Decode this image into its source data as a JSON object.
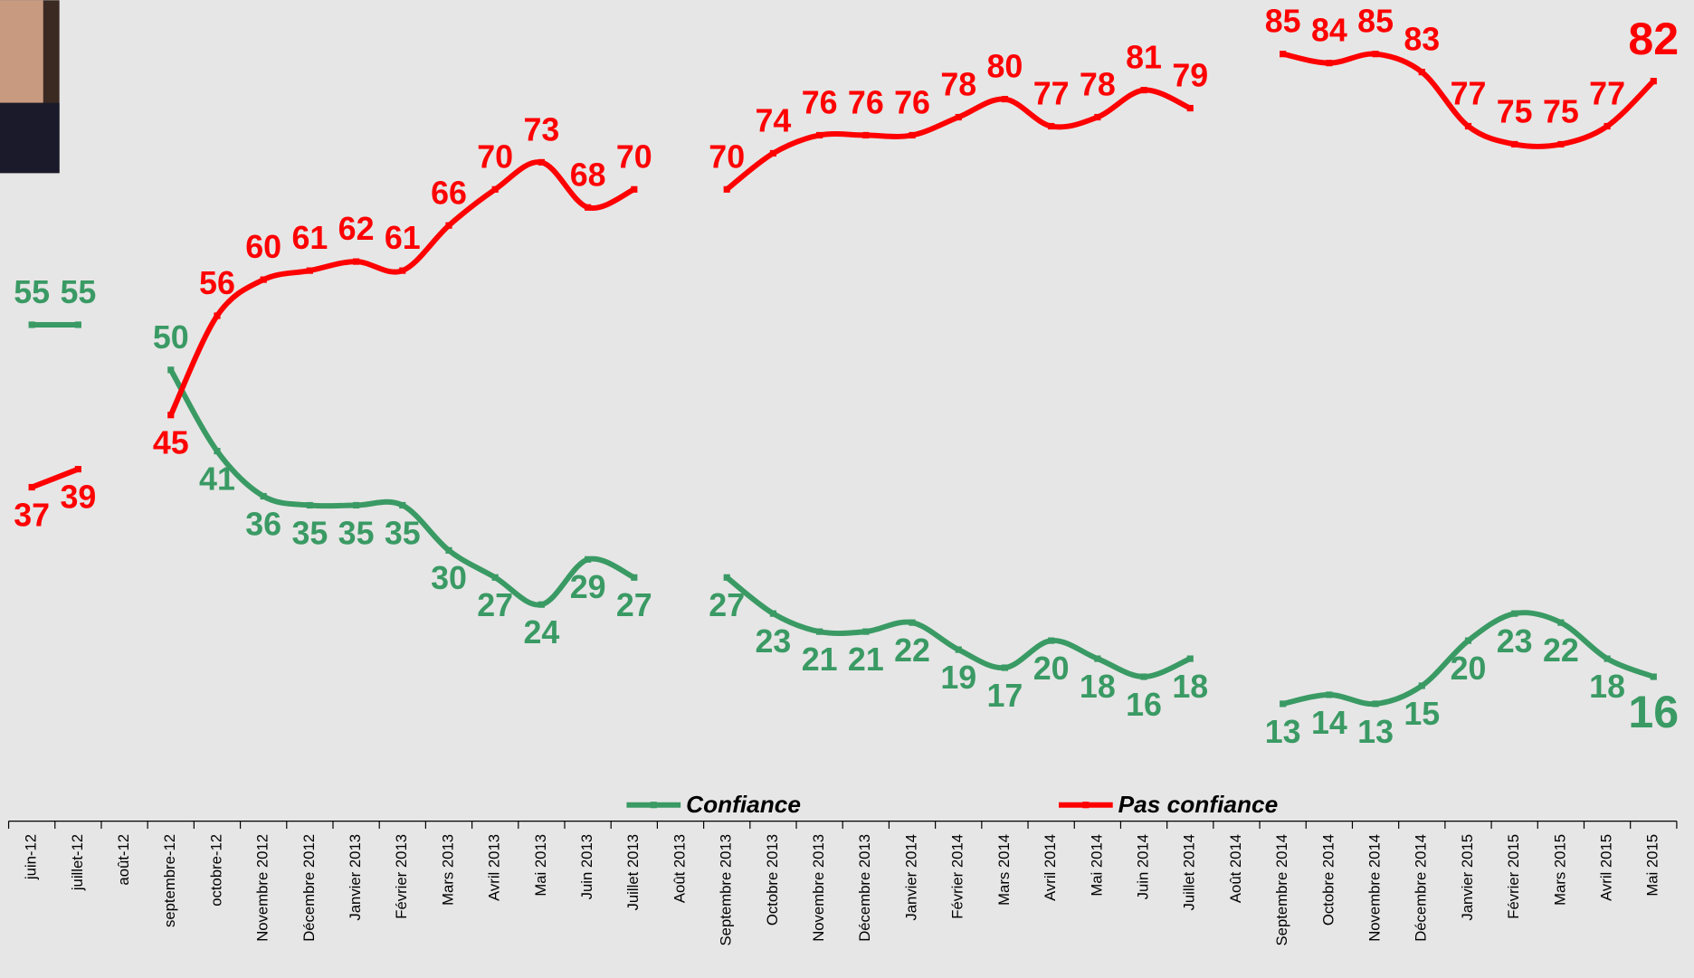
{
  "chart_data": {
    "type": "line",
    "categories": [
      "juin-12",
      "juillet-12",
      "août-12",
      "septembre-12",
      "octobre-12",
      "Novembre 2012",
      "Décembre 2012",
      "Janvier 2013",
      "Février 2013",
      "Mars 2013",
      "Avril 2013",
      "Mai 2013",
      "Juin 2013",
      "Juillet 2013",
      "Août 2013",
      "Septembre 2013",
      "Octobre 2013",
      "Novembre 2013",
      "Décembre 2013",
      "Janvier 2014",
      "Février 2014",
      "Mars 2014",
      "Avril 2014",
      "Mai 2014",
      "Juin 2014",
      "Juillet 2014",
      "Août 2014",
      "Septembre 2014",
      "Octobre 2014",
      "Novembre 2014",
      "Décembre 2014",
      "Janvier 2015",
      "Février 2015",
      "Mars 2015",
      "Avril 2015",
      "Mai 2015"
    ],
    "series": [
      {
        "name": "Confiance",
        "color": "#3a9a64",
        "values": [
          55,
          55,
          null,
          50,
          41,
          36,
          35,
          35,
          35,
          30,
          27,
          24,
          29,
          27,
          null,
          27,
          23,
          21,
          21,
          22,
          19,
          17,
          20,
          18,
          16,
          18,
          null,
          13,
          14,
          13,
          15,
          20,
          23,
          22,
          18,
          16
        ]
      },
      {
        "name": "Pas confiance",
        "color": "#ff0000",
        "values": [
          37,
          39,
          null,
          45,
          56,
          60,
          61,
          62,
          61,
          66,
          70,
          73,
          68,
          70,
          null,
          70,
          74,
          76,
          76,
          76,
          78,
          80,
          77,
          78,
          81,
          79,
          null,
          85,
          84,
          85,
          83,
          77,
          75,
          75,
          77,
          82
        ]
      }
    ],
    "ylim": [
      0,
      90
    ]
  }
}
